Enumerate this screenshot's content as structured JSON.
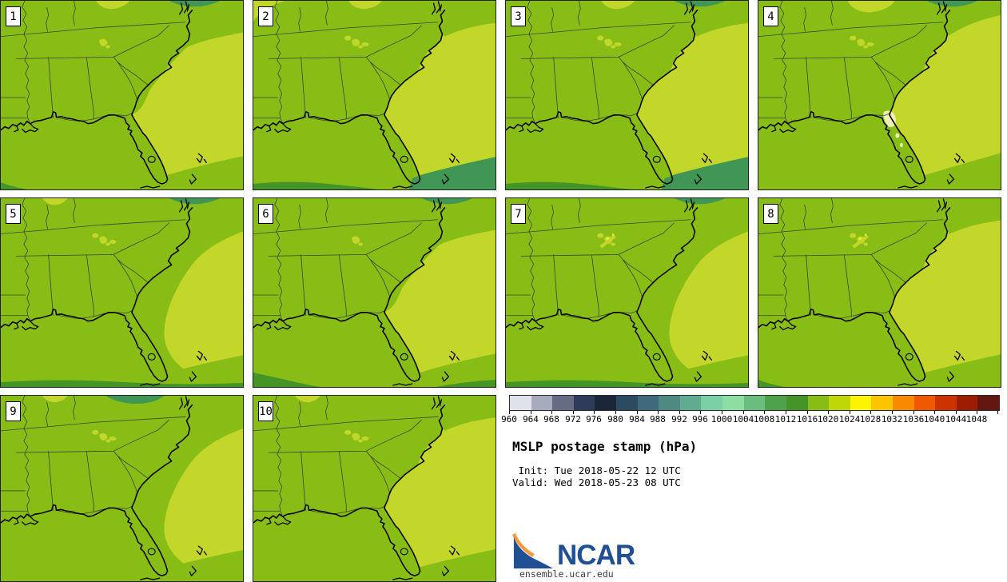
{
  "panels": [
    {
      "number": "1",
      "features": {
        "blob": "touch",
        "top_teal": "right",
        "top_patch": "center",
        "bottom": "corner",
        "se_green": false,
        "speckles": "small",
        "tl_patch": false,
        "coastal_spot": false
      }
    },
    {
      "number": "2",
      "features": {
        "blob": "touchwide",
        "top_teal": null,
        "top_patch": "center",
        "bottom": "stripleft",
        "se_green": true,
        "speckles": "big",
        "tl_patch": true,
        "coastal_spot": false
      }
    },
    {
      "number": "3",
      "features": {
        "blob": "touchwide",
        "top_teal": "right",
        "top_patch": "center",
        "bottom": "stripleft",
        "se_green": true,
        "speckles": "big",
        "tl_patch": false,
        "coastal_spot": false
      }
    },
    {
      "number": "4",
      "features": {
        "blob": "touchmax",
        "top_teal": "right",
        "top_patch": "big",
        "bottom": null,
        "se_green": false,
        "speckles": "big",
        "tl_patch": false,
        "coastal_spot": true
      }
    },
    {
      "number": "5",
      "features": {
        "blob": "offshore",
        "top_teal": "right",
        "top_patch": "left",
        "bottom": "full",
        "se_green": false,
        "speckles": "big",
        "tl_patch": false,
        "coastal_spot": false
      }
    },
    {
      "number": "6",
      "features": {
        "blob": "touch",
        "top_teal": "right",
        "top_patch": null,
        "bottom": "chunk",
        "se_green": false,
        "speckles": "small",
        "tl_patch": false,
        "coastal_spot": false
      }
    },
    {
      "number": "7",
      "features": {
        "blob": "offshore",
        "top_teal": "right",
        "top_patch": null,
        "bottom": "full",
        "se_green": false,
        "speckles": "yellow",
        "tl_patch": false,
        "coastal_spot": false
      }
    },
    {
      "number": "8",
      "features": {
        "blob": "touchwide",
        "top_teal": null,
        "top_patch": null,
        "bottom": "corner",
        "se_green": false,
        "speckles": "yellow",
        "tl_patch": false,
        "coastal_spot": false
      }
    },
    {
      "number": "9",
      "features": {
        "blob": "offshore",
        "top_teal": "center",
        "top_patch": "left",
        "bottom": null,
        "se_green": false,
        "speckles": "big",
        "tl_patch": false,
        "coastal_spot": false
      }
    },
    {
      "number": "10",
      "features": {
        "blob": "touchwide",
        "top_teal": null,
        "top_patch": "left",
        "bottom": null,
        "se_green": false,
        "speckles": "big",
        "tl_patch": false,
        "coastal_spot": false
      }
    }
  ],
  "colorbar": {
    "units": "hPa",
    "values": [
      "960",
      "964",
      "968",
      "972",
      "976",
      "980",
      "984",
      "988",
      "992",
      "996",
      "1000",
      "1004",
      "1008",
      "1012",
      "1016",
      "1020",
      "1024",
      "1028",
      "1032",
      "1036",
      "1040",
      "1044",
      "1048"
    ],
    "colors": [
      "#dfe2ea",
      "#a6abbe",
      "#666d83",
      "#2f3c59",
      "#1a2739",
      "#2c4a60",
      "#3e6a7b",
      "#4f8a82",
      "#61ac90",
      "#7bd0a5",
      "#8edda2",
      "#69bd7f",
      "#4fa24c",
      "#459427",
      "#88bd16",
      "#bfd607",
      "#fdf403",
      "#fec401",
      "#f88a01",
      "#ef5801",
      "#cc3301",
      "#9d1d03",
      "#641710"
    ]
  },
  "legend": {
    "title": "MSLP postage stamp (hPa)",
    "init_line": " Init: Tue 2018-05-22 12 UTC",
    "valid_line": "Valid: Wed 2018-05-23 08 UTC"
  },
  "branding": {
    "logo_text": "NCAR",
    "site": "ensemble.ucar.edu",
    "logo_blue": "#204f93",
    "logo_orange": "#f5993d"
  },
  "map_colors": {
    "base": "#88bd16",
    "high": "#c3d72b",
    "low1": "#459427",
    "low2": "#3f9655",
    "spot": "#edf0b4",
    "speck_yellow": "#f4ee35",
    "border": "#3a4431",
    "outline": "#000000"
  }
}
